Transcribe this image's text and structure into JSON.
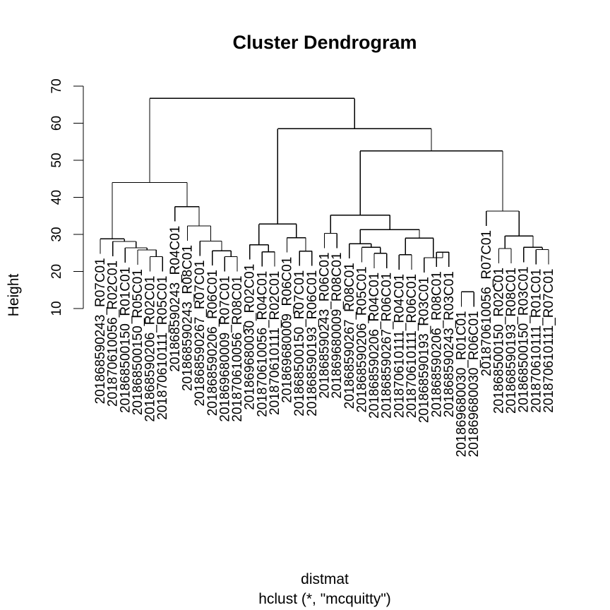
{
  "chart_data": {
    "type": "dendrogram",
    "title": "Cluster Dendrogram",
    "xlabel": "distmat",
    "sublabel": "hclust (*, \"mcquitty\")",
    "ylabel": "Height",
    "ylim": [
      10,
      70
    ],
    "yticks": [
      10,
      20,
      30,
      40,
      50,
      60,
      70
    ],
    "leaves": [
      "201868590243_R07C01",
      "201870610056_R02C01",
      "201868500150_R01C01",
      "201868500150_R05C01",
      "201868590206_R02C01",
      "201870610111_R05C01",
      "201868590243_R04C01",
      "201868590243_R08C01",
      "201868590267_R07C01",
      "201868590206_R06C01",
      "201869680009_R07C01",
      "201870610056_R08C01",
      "201869680030_R02C01",
      "201870610056_R04C01",
      "201870610111_R02C01",
      "201869680009_R06C01",
      "201868500150_R07C01",
      "201868590193_R06C01",
      "201868590243_R06C01",
      "201869680009_R08C01",
      "201868590267_R08C01",
      "201868590206_R05C01",
      "201868590206_R04C01",
      "201868590267_R06C01",
      "201870610111_R04C01",
      "201870610111_R06C01",
      "201868590193_R03C01",
      "201868590206_R08C01",
      "201868590243_R03C01",
      "201869680030_R01C01",
      "201869680030_R06C01",
      "201870610056_R07C01",
      "201868500150_R02C01",
      "201868590193_R08C01",
      "201868500150_R03C01",
      "201870610111_R01C01",
      "201870610111_R07C01"
    ],
    "merges": [
      {
        "a": 4,
        "b": 5,
        "height": 24.0
      },
      {
        "a": 3,
        "b": "m0",
        "height": 25.8
      },
      {
        "a": 2,
        "b": "m1",
        "height": 26.4
      },
      {
        "a": 1,
        "b": "m2",
        "height": 28.1
      },
      {
        "a": 0,
        "b": "m3",
        "height": 28.8
      },
      {
        "a": 10,
        "b": 11,
        "height": 24.0
      },
      {
        "a": 9,
        "b": "m5",
        "height": 25.6
      },
      {
        "a": 8,
        "b": "m6",
        "height": 28.2
      },
      {
        "a": 7,
        "b": "m7",
        "height": 32.3
      },
      {
        "a": 6,
        "b": "m8",
        "height": 37.5
      },
      {
        "a": "m4",
        "b": "m9",
        "height": 44.0
      },
      {
        "a": 13,
        "b": 14,
        "height": 25.3
      },
      {
        "a": 12,
        "b": "m11",
        "height": 27.2
      },
      {
        "a": 16,
        "b": 17,
        "height": 25.5
      },
      {
        "a": 15,
        "b": "m13",
        "height": 29.1
      },
      {
        "a": "m12",
        "b": "m14",
        "height": 32.8
      },
      {
        "a": 18,
        "b": 19,
        "height": 30.3
      },
      {
        "a": 22,
        "b": 23,
        "height": 24.9
      },
      {
        "a": 21,
        "b": "m17",
        "height": 26.5
      },
      {
        "a": 20,
        "b": "m18",
        "height": 27.5
      },
      {
        "a": 24,
        "b": 25,
        "height": 24.5
      },
      {
        "a": 27,
        "b": 28,
        "height": 25.2
      },
      {
        "a": 26,
        "b": "m21",
        "height": 23.7
      },
      {
        "a": "m20",
        "b": "m22",
        "height": 29.0
      },
      {
        "a": "m19",
        "b": "m23",
        "height": 31.3
      },
      {
        "a": "m16",
        "b": "m24",
        "height": 35.2
      },
      {
        "a": 29,
        "b": 30,
        "height": 14.5
      },
      {
        "a": 35,
        "b": 36,
        "height": 25.9
      },
      {
        "a": 34,
        "b": "m27",
        "height": 26.5
      },
      {
        "a": 32,
        "b": 33,
        "height": 26.2
      },
      {
        "a": "m29",
        "b": "m28",
        "height": 29.6
      },
      {
        "a": 31,
        "b": "m30",
        "height": 36.3
      },
      {
        "a": "m25",
        "b": "m31",
        "height": 52.5
      },
      {
        "a": "m15",
        "b": "m32",
        "height": 58.5
      },
      {
        "a": "m10",
        "b": "m33",
        "height": 66.7
      }
    ]
  }
}
